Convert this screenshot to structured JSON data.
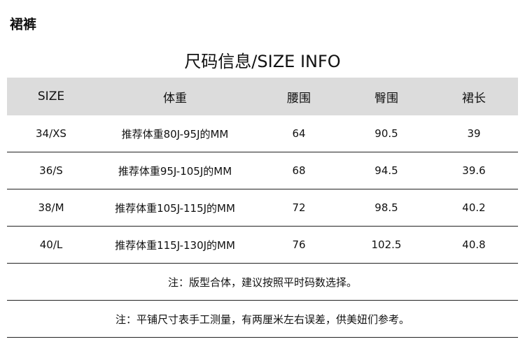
{
  "category": "裙裤",
  "title": "尺码信息/SIZE INFO",
  "table": {
    "headers": [
      "SIZE",
      "体重",
      "腰围",
      "臀围",
      "裙长"
    ],
    "rows": [
      [
        "34/XS",
        "推荐体重80J-95J的MM",
        "64",
        "90.5",
        "39"
      ],
      [
        "36/S",
        "推荐体重95J-105J的MM",
        "68",
        "94.5",
        "39.6"
      ],
      [
        "38/M",
        "推荐体重105J-115J的MM",
        "72",
        "98.5",
        "40.2"
      ],
      [
        "40/L",
        "推荐体重115J-130J的MM",
        "76",
        "102.5",
        "40.8"
      ]
    ]
  },
  "notes": [
    "注：版型合体，建议按照平时码数选择。",
    "注：平铺尺寸表手工测量，有两厘米左右误差，供美妞们参考。"
  ]
}
